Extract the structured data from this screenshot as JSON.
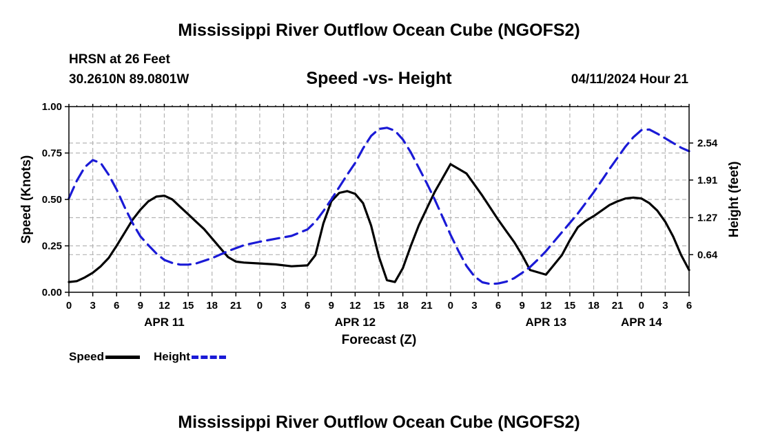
{
  "header": {
    "title": "Mississippi River Outflow Ocean Cube (NGOFS2)",
    "station": "HRSN at 26 Feet",
    "coords": "30.2610N  89.0801W",
    "subtitle": "Speed -vs- Height",
    "datetime": "04/11/2024 Hour 21",
    "repeat_title": "Mississippi River Outflow Ocean Cube (NGOFS2)"
  },
  "legend": {
    "speed_label": "Speed",
    "height_label": "Height"
  },
  "colors": {
    "speed": "#000000",
    "height": "#1a1ad6",
    "grid": "#b4b4b4"
  },
  "chart_data": {
    "type": "line",
    "title": "Speed -vs- Height",
    "xlabel": "Forecast (Z)",
    "ylabel": "Speed (Knots)",
    "y2label": "Height (feet)",
    "xlim": [
      0,
      78
    ],
    "ylim": [
      0,
      1
    ],
    "y2lim": [
      0,
      3.16
    ],
    "x_tick_labels": [
      "0",
      "3",
      "6",
      "9",
      "12",
      "15",
      "18",
      "21",
      "0",
      "3",
      "6",
      "9",
      "12",
      "15",
      "18",
      "21",
      "0",
      "3",
      "6",
      "9",
      "12",
      "15",
      "18",
      "21",
      "0",
      "3",
      "6"
    ],
    "day_labels": [
      {
        "label": "APR 11",
        "x": 12
      },
      {
        "label": "APR 12",
        "x": 36
      },
      {
        "label": "APR 13",
        "x": 60
      },
      {
        "label": "APR 14",
        "x": 72
      }
    ],
    "y_ticks": [
      "0.00",
      "0.25",
      "0.50",
      "0.75",
      "1.00"
    ],
    "y2_ticks": [
      "0.64",
      "1.27",
      "1.91",
      "2.54"
    ],
    "series": [
      {
        "name": "Speed",
        "axis": "left",
        "style": "solid",
        "x": [
          0,
          1,
          2,
          3,
          4,
          5,
          6,
          7,
          8,
          9,
          10,
          11,
          12,
          13,
          14,
          15,
          16,
          17,
          18,
          19,
          20,
          21,
          22,
          24,
          26,
          28,
          30,
          31,
          32,
          33,
          34,
          35,
          36,
          37,
          38,
          39,
          40,
          41,
          42,
          43,
          44,
          45,
          46,
          48,
          50,
          52,
          54,
          55,
          56,
          57,
          58,
          60,
          62,
          63,
          64,
          65,
          66,
          67,
          68,
          69,
          70,
          71,
          72,
          73,
          74,
          75,
          76,
          77,
          78
        ],
        "values": [
          0.055,
          0.06,
          0.08,
          0.105,
          0.14,
          0.185,
          0.25,
          0.32,
          0.39,
          0.445,
          0.49,
          0.515,
          0.52,
          0.5,
          0.46,
          0.42,
          0.38,
          0.34,
          0.29,
          0.24,
          0.19,
          0.165,
          0.16,
          0.155,
          0.15,
          0.14,
          0.145,
          0.2,
          0.37,
          0.49,
          0.535,
          0.545,
          0.53,
          0.48,
          0.36,
          0.19,
          0.065,
          0.055,
          0.13,
          0.25,
          0.36,
          0.45,
          0.54,
          0.69,
          0.64,
          0.52,
          0.39,
          0.33,
          0.27,
          0.2,
          0.12,
          0.095,
          0.2,
          0.28,
          0.35,
          0.385,
          0.41,
          0.44,
          0.47,
          0.49,
          0.505,
          0.51,
          0.505,
          0.48,
          0.44,
          0.38,
          0.3,
          0.2,
          0.12
        ]
      },
      {
        "name": "Height",
        "axis": "right",
        "style": "dashed",
        "x": [
          0,
          1,
          2,
          3,
          4,
          5,
          6,
          7,
          8,
          9,
          10,
          11,
          12,
          13,
          14,
          15,
          16,
          18,
          20,
          22,
          24,
          26,
          28,
          30,
          31,
          32,
          33,
          34,
          35,
          36,
          37,
          38,
          39,
          40,
          41,
          42,
          43,
          44,
          45,
          46,
          47,
          48,
          49,
          50,
          51,
          52,
          53,
          54,
          55,
          56,
          57,
          58,
          59,
          60,
          61,
          62,
          63,
          64,
          65,
          66,
          67,
          68,
          69,
          70,
          71,
          72,
          73,
          74,
          75,
          76,
          77,
          78
        ],
        "values": [
          1.6,
          1.9,
          2.13,
          2.25,
          2.2,
          2.0,
          1.75,
          1.45,
          1.18,
          0.95,
          0.8,
          0.66,
          0.55,
          0.5,
          0.47,
          0.47,
          0.49,
          0.58,
          0.7,
          0.8,
          0.86,
          0.91,
          0.96,
          1.07,
          1.2,
          1.38,
          1.58,
          1.79,
          2.0,
          2.2,
          2.45,
          2.66,
          2.78,
          2.8,
          2.75,
          2.6,
          2.38,
          2.12,
          1.86,
          1.58,
          1.28,
          0.98,
          0.7,
          0.45,
          0.27,
          0.17,
          0.14,
          0.15,
          0.18,
          0.24,
          0.33,
          0.43,
          0.56,
          0.7,
          0.86,
          1.02,
          1.18,
          1.34,
          1.52,
          1.7,
          1.9,
          2.1,
          2.29,
          2.48,
          2.64,
          2.76,
          2.77,
          2.7,
          2.62,
          2.54,
          2.46,
          2.4
        ]
      }
    ]
  }
}
